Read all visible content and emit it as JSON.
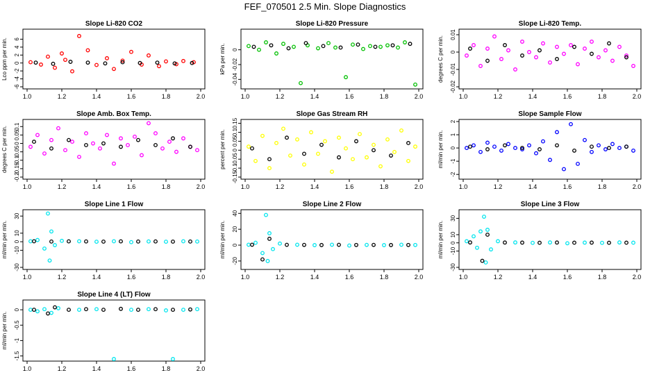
{
  "page": {
    "title": "FEF_070501  2.5 Min. Slope Diagnostics"
  },
  "chart_data": [
    {
      "type": "scatter",
      "title": "Slope Li-820 CO2",
      "xlabel": "",
      "ylabel": "Lco ppm per min.",
      "xlim": [
        1.0,
        2.0
      ],
      "ylim": [
        -6,
        8
      ],
      "yticks": [
        -6,
        -4,
        -2,
        0,
        2,
        4,
        6
      ],
      "series": [
        {
          "color": "#ff0000",
          "x": [
            1.02,
            1.08,
            1.12,
            1.16,
            1.2,
            1.22,
            1.26,
            1.3,
            1.35,
            1.4,
            1.46,
            1.5,
            1.55,
            1.6,
            1.66,
            1.7,
            1.76,
            1.8,
            1.86,
            1.9,
            1.96
          ],
          "y": [
            0.2,
            -0.4,
            1.6,
            -1.2,
            2.4,
            0.8,
            -2.1,
            6.8,
            3.2,
            -0.5,
            1.2,
            -1.5,
            0.6,
            2.8,
            -0.4,
            1.9,
            -0.8,
            0.4,
            -0.3,
            0.5,
            0.2
          ]
        },
        {
          "color": "#000000",
          "x": [
            1.05,
            1.15,
            1.25,
            1.35,
            1.45,
            1.55,
            1.65,
            1.75,
            1.85,
            1.95
          ],
          "y": [
            0.1,
            -0.2,
            0.3,
            0.1,
            -0.1,
            0.2,
            0.0,
            0.1,
            -0.1,
            0.0
          ]
        }
      ]
    },
    {
      "type": "scatter",
      "title": "Slope Li-820 Pressure",
      "xlabel": "",
      "ylabel": "kPa per min.",
      "xlim": [
        1.0,
        2.0
      ],
      "ylim": [
        -0.05,
        0.025
      ],
      "yticks": [
        -0.04,
        -0.02,
        0.0
      ],
      "series": [
        {
          "color": "#00c000",
          "x": [
            1.02,
            1.08,
            1.12,
            1.18,
            1.22,
            1.28,
            1.32,
            1.36,
            1.42,
            1.48,
            1.52,
            1.58,
            1.62,
            1.68,
            1.72,
            1.78,
            1.82,
            1.88,
            1.92,
            1.98
          ],
          "y": [
            0.005,
            0.0,
            0.01,
            -0.005,
            0.008,
            0.004,
            -0.045,
            0.006,
            0.002,
            0.009,
            0.003,
            -0.037,
            0.007,
            0.001,
            0.005,
            0.004,
            0.006,
            0.003,
            0.01,
            -0.047
          ]
        },
        {
          "color": "#000000",
          "x": [
            1.05,
            1.15,
            1.25,
            1.35,
            1.45,
            1.55,
            1.65,
            1.75,
            1.85,
            1.95
          ],
          "y": [
            0.004,
            0.006,
            0.002,
            0.009,
            0.005,
            0.003,
            0.007,
            0.004,
            0.006,
            0.008
          ]
        }
      ]
    },
    {
      "type": "scatter",
      "title": "Slope Li-820 Temp.",
      "xlabel": "",
      "ylabel": "degrees C per min.",
      "xlim": [
        1.0,
        2.0
      ],
      "ylim": [
        -0.02,
        0.012
      ],
      "yticks": [
        -0.02,
        -0.01,
        0.0,
        0.01
      ],
      "series": [
        {
          "color": "#ff00ff",
          "x": [
            1.02,
            1.06,
            1.1,
            1.14,
            1.18,
            1.22,
            1.26,
            1.3,
            1.34,
            1.38,
            1.42,
            1.46,
            1.5,
            1.54,
            1.58,
            1.62,
            1.66,
            1.7,
            1.74,
            1.78,
            1.82,
            1.86,
            1.9,
            1.94,
            1.98
          ],
          "y": [
            -0.002,
            0.004,
            -0.008,
            0.002,
            0.009,
            -0.004,
            0.001,
            -0.01,
            0.006,
            0.0,
            -0.003,
            0.005,
            -0.006,
            0.003,
            -0.001,
            0.004,
            -0.007,
            0.002,
            0.006,
            -0.003,
            0.001,
            -0.005,
            0.003,
            -0.002,
            -0.008
          ]
        },
        {
          "color": "#000000",
          "x": [
            1.04,
            1.14,
            1.24,
            1.34,
            1.44,
            1.54,
            1.64,
            1.74,
            1.84,
            1.94
          ],
          "y": [
            0.002,
            -0.005,
            0.004,
            -0.002,
            0.001,
            -0.004,
            0.003,
            -0.001,
            0.005,
            -0.003
          ]
        }
      ]
    },
    {
      "type": "scatter",
      "title": "Slope Amb. Box Temp.",
      "xlabel": "",
      "ylabel": "degrees C per min.",
      "xlim": [
        1.0,
        2.0
      ],
      "ylim": [
        -0.2,
        0.13
      ],
      "yticks": [
        -0.2,
        -0.15,
        -0.1,
        -0.05,
        0.0,
        0.05,
        0.1
      ],
      "series": [
        {
          "color": "#ff00ff",
          "x": [
            1.02,
            1.06,
            1.1,
            1.14,
            1.18,
            1.22,
            1.26,
            1.3,
            1.34,
            1.38,
            1.42,
            1.46,
            1.5,
            1.54,
            1.58,
            1.62,
            1.66,
            1.7,
            1.74,
            1.78,
            1.82,
            1.86,
            1.9,
            1.94,
            1.98
          ],
          "y": [
            -0.02,
            0.05,
            -0.06,
            0.02,
            0.09,
            -0.04,
            0.01,
            -0.08,
            0.06,
            0.0,
            -0.03,
            0.05,
            -0.12,
            0.03,
            -0.01,
            0.04,
            -0.07,
            0.12,
            0.06,
            -0.03,
            0.01,
            -0.05,
            0.03,
            -0.02,
            -0.04
          ]
        },
        {
          "color": "#000000",
          "x": [
            1.04,
            1.14,
            1.24,
            1.34,
            1.44,
            1.54,
            1.64,
            1.74,
            1.84,
            1.94
          ],
          "y": [
            0.01,
            -0.03,
            0.02,
            -0.01,
            0.0,
            -0.02,
            0.02,
            -0.01,
            0.03,
            -0.02
          ]
        }
      ]
    },
    {
      "type": "scatter",
      "title": "Slope Gas Stream RH",
      "xlabel": "",
      "ylabel": "percent per min.",
      "xlim": [
        1.0,
        2.0
      ],
      "ylim": [
        -0.15,
        0.16
      ],
      "yticks": [
        -0.15,
        -0.1,
        -0.05,
        0.0,
        0.05,
        0.1,
        0.15
      ],
      "series": [
        {
          "color": "#ffff00",
          "x": [
            1.02,
            1.06,
            1.1,
            1.14,
            1.18,
            1.22,
            1.26,
            1.3,
            1.34,
            1.38,
            1.42,
            1.46,
            1.5,
            1.54,
            1.58,
            1.62,
            1.66,
            1.7,
            1.74,
            1.78,
            1.82,
            1.86,
            1.9,
            1.94,
            1.98
          ],
          "y": [
            0.02,
            -0.06,
            0.08,
            -0.1,
            0.04,
            0.12,
            -0.03,
            0.06,
            -0.08,
            0.1,
            -0.02,
            0.05,
            -0.12,
            0.07,
            0.01,
            -0.05,
            0.09,
            -0.04,
            0.03,
            -0.09,
            0.06,
            -0.01,
            0.11,
            -0.06,
            0.02
          ]
        },
        {
          "color": "#000000",
          "x": [
            1.04,
            1.14,
            1.24,
            1.34,
            1.44,
            1.54,
            1.64,
            1.74,
            1.84,
            1.94
          ],
          "y": [
            0.01,
            -0.05,
            0.07,
            -0.02,
            0.03,
            -0.04,
            0.05,
            0.0,
            -0.03,
            0.04
          ]
        }
      ]
    },
    {
      "type": "scatter",
      "title": "Slope Sample Flow",
      "xlabel": "",
      "ylabel": "ml/min per min.",
      "xlim": [
        1.0,
        2.0
      ],
      "ylim": [
        -2.2,
        2.0
      ],
      "yticks": [
        -2,
        -1,
        0,
        1,
        2
      ],
      "series": [
        {
          "color": "#0000ff",
          "x": [
            1.02,
            1.06,
            1.1,
            1.14,
            1.18,
            1.22,
            1.26,
            1.3,
            1.34,
            1.38,
            1.42,
            1.46,
            1.5,
            1.54,
            1.58,
            1.62,
            1.66,
            1.7,
            1.74,
            1.78,
            1.82,
            1.86,
            1.9,
            1.94,
            1.98
          ],
          "y": [
            0.0,
            0.2,
            -0.3,
            0.4,
            0.1,
            -0.2,
            0.3,
            0.0,
            -0.1,
            0.2,
            -0.4,
            0.5,
            -0.9,
            1.2,
            -1.6,
            1.8,
            -1.2,
            0.6,
            -0.3,
            0.2,
            -0.1,
            0.3,
            0.0,
            0.1,
            -0.2
          ]
        },
        {
          "color": "#000000",
          "x": [
            1.04,
            1.14,
            1.24,
            1.34,
            1.44,
            1.54,
            1.64,
            1.74,
            1.84,
            1.94
          ],
          "y": [
            0.1,
            -0.1,
            0.2,
            0.0,
            -0.1,
            0.2,
            -0.2,
            0.1,
            0.0,
            0.1
          ]
        }
      ]
    },
    {
      "type": "scatter",
      "title": "Slope Line 1 Flow",
      "xlabel": "",
      "ylabel": "ml/min per min.",
      "xlim": [
        1.0,
        2.0
      ],
      "ylim": [
        -30,
        35
      ],
      "yticks": [
        -30,
        -10,
        0,
        10,
        30
      ],
      "series": [
        {
          "color": "#00e5ee",
          "x": [
            1.02,
            1.06,
            1.1,
            1.12,
            1.13,
            1.14,
            1.16,
            1.2,
            1.3,
            1.4,
            1.5,
            1.6,
            1.7,
            1.8,
            1.9,
            1.98
          ],
          "y": [
            0.5,
            2.0,
            -8.0,
            33.0,
            -22.0,
            12.0,
            -4.0,
            1.0,
            0.5,
            0.0,
            0.5,
            -0.5,
            0.3,
            0.0,
            0.5,
            0.2
          ]
        },
        {
          "color": "#000000",
          "x": [
            1.04,
            1.14,
            1.24,
            1.34,
            1.44,
            1.54,
            1.64,
            1.74,
            1.84,
            1.94
          ],
          "y": [
            0.5,
            0.2,
            0.4,
            0.3,
            0.1,
            0.4,
            0.2,
            0.3,
            0.1,
            0.2
          ]
        }
      ]
    },
    {
      "type": "scatter",
      "title": "Slope Line 2 Flow",
      "xlabel": "",
      "ylabel": "ml/min per min.",
      "xlim": [
        1.0,
        2.0
      ],
      "ylim": [
        -28,
        42
      ],
      "yticks": [
        -20,
        0,
        20,
        40
      ],
      "series": [
        {
          "color": "#00e5ee",
          "x": [
            1.02,
            1.06,
            1.1,
            1.12,
            1.13,
            1.14,
            1.16,
            1.2,
            1.3,
            1.4,
            1.5,
            1.6,
            1.7,
            1.8,
            1.9,
            1.98
          ],
          "y": [
            0.5,
            3.0,
            -10.0,
            38.0,
            -20.0,
            15.0,
            -5.0,
            2.0,
            0.5,
            0.0,
            0.5,
            -0.5,
            0.3,
            0.0,
            0.5,
            0.2
          ]
        },
        {
          "color": "#000000",
          "x": [
            1.04,
            1.1,
            1.14,
            1.24,
            1.34,
            1.44,
            1.54,
            1.64,
            1.74,
            1.84,
            1.94
          ],
          "y": [
            0.5,
            -18.0,
            8.0,
            0.4,
            0.3,
            0.1,
            0.4,
            0.2,
            0.3,
            0.1,
            0.2
          ]
        }
      ]
    },
    {
      "type": "scatter",
      "title": "Slope Line 3 Flow",
      "xlabel": "",
      "ylabel": "ml/min per min.",
      "xlim": [
        1.0,
        2.0
      ],
      "ylim": [
        -30,
        38
      ],
      "yticks": [
        -30,
        -10,
        0,
        10,
        30
      ],
      "series": [
        {
          "color": "#00e5ee",
          "x": [
            1.02,
            1.06,
            1.08,
            1.1,
            1.12,
            1.13,
            1.14,
            1.16,
            1.2,
            1.3,
            1.4,
            1.5,
            1.6,
            1.7,
            1.8,
            1.9,
            1.98
          ],
          "y": [
            2.0,
            8.0,
            -6.0,
            14.0,
            32.0,
            -24.0,
            16.0,
            -8.0,
            2.0,
            0.5,
            0.0,
            0.5,
            -0.5,
            0.3,
            0.0,
            0.5,
            0.2
          ]
        },
        {
          "color": "#000000",
          "x": [
            1.04,
            1.11,
            1.14,
            1.24,
            1.34,
            1.44,
            1.54,
            1.64,
            1.74,
            1.84,
            1.94
          ],
          "y": [
            0.5,
            -22.0,
            10.0,
            0.4,
            0.3,
            0.1,
            0.4,
            0.2,
            0.3,
            0.1,
            0.2
          ]
        }
      ]
    },
    {
      "type": "scatter",
      "title": "Slope Line 4 (LT) Flow",
      "xlabel": "",
      "ylabel": "ml/min per min.",
      "xlim": [
        1.0,
        2.0
      ],
      "ylim": [
        -1.6,
        0.25
      ],
      "yticks": [
        -1.5,
        -1.0,
        -0.5,
        0.0
      ],
      "series": [
        {
          "color": "#00e5ee",
          "x": [
            1.02,
            1.06,
            1.1,
            1.14,
            1.18,
            1.3,
            1.4,
            1.5,
            1.6,
            1.7,
            1.8,
            1.84,
            1.9,
            1.98
          ],
          "y": [
            0.0,
            -0.05,
            0.02,
            -0.1,
            0.05,
            0.0,
            0.02,
            -1.6,
            0.0,
            0.02,
            -0.02,
            -1.6,
            0.0,
            0.02
          ]
        },
        {
          "color": "#000000",
          "x": [
            1.04,
            1.12,
            1.16,
            1.24,
            1.34,
            1.44,
            1.54,
            1.64,
            1.74,
            1.84,
            1.94
          ],
          "y": [
            0.0,
            -0.12,
            0.08,
            0.0,
            0.02,
            0.0,
            0.03,
            0.0,
            0.02,
            0.0,
            0.01
          ]
        }
      ]
    }
  ]
}
